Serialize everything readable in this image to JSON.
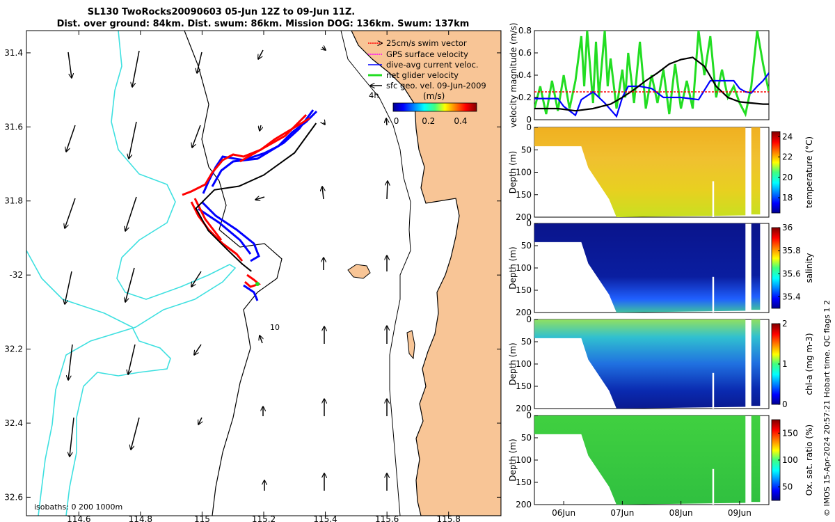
{
  "title": {
    "line1": "SL130 TwoRocks20090603 05-Jun 12Z to 09-Jun 11Z.",
    "line2": "Dist. over ground: 84km. Dist. swum: 86km. Mission DOG: 136km. Swum: 137km"
  },
  "colors": {
    "land": "#f8c596",
    "isobath_200": "#3ee0e0",
    "coastline": "#000000",
    "swim": "#ff0000",
    "gps": "#ff00ff",
    "current": "#0000ff",
    "net": "#22dd22"
  },
  "chart_data": [
    {
      "type": "scatter",
      "name": "glider-track-map",
      "xlabel": "",
      "ylabel": "",
      "xlim": [
        114.43,
        115.97
      ],
      "ylim": [
        -32.65,
        -31.34
      ],
      "x_ticks": [
        114.6,
        114.8,
        115,
        115.2,
        115.4,
        115.6,
        115.8
      ],
      "x_tick_labels": [
        "114.6",
        "114.8",
        "115",
        "115.2",
        "115.4",
        "115.6",
        "115.8"
      ],
      "y_ticks": [
        -31.4,
        -31.6,
        -31.8,
        -32,
        -32.2,
        -32.4,
        -32.6
      ],
      "y_tick_labels": [
        "31.4",
        "31.6",
        "31.8",
        "-32",
        "32.2",
        "32.4",
        "32.6"
      ],
      "legend": {
        "placement": "top-right",
        "entries": [
          "25cm/s swim vector",
          "GPS surface velocity",
          "dive-avg current veloc.",
          "net glider velocity",
          "sfc geo. vel. 09-Jun-2009"
        ],
        "time_label": "4h"
      },
      "colorbar": {
        "label": "(m/s)",
        "ticks": [
          0,
          0.2,
          0.4
        ],
        "range": [
          -0.02,
          0.5
        ]
      },
      "annotations": {
        "isobaths": "isobaths: 0   200  1000m",
        "label_10": "10"
      },
      "track": [
        [
          115.37,
          -31.59
        ],
        [
          115.3,
          -31.67
        ],
        [
          115.2,
          -31.73
        ],
        [
          115.12,
          -31.76
        ],
        [
          115.04,
          -31.77
        ],
        [
          114.98,
          -31.82
        ],
        [
          115.02,
          -31.88
        ],
        [
          115.08,
          -31.93
        ],
        [
          115.13,
          -31.97
        ],
        [
          115.16,
          -31.99
        ]
      ]
    },
    {
      "type": "line",
      "name": "velocity-magnitude",
      "xlabel": "",
      "ylabel": "velocity magnitude (m/s)",
      "ylim": [
        0,
        0.8
      ],
      "y_ticks": [
        0,
        0.2,
        0.4,
        0.6,
        0.8
      ],
      "x_range_days": [
        5.5,
        9.5
      ],
      "series": [
        {
          "name": "net glider velocity",
          "color": "#22dd22",
          "x": [
            5.5,
            5.6,
            5.7,
            5.8,
            5.9,
            6.0,
            6.1,
            6.2,
            6.3,
            6.35,
            6.4,
            6.5,
            6.55,
            6.6,
            6.7,
            6.75,
            6.8,
            6.9,
            7.0,
            7.05,
            7.1,
            7.2,
            7.3,
            7.4,
            7.5,
            7.6,
            7.7,
            7.8,
            7.9,
            8.0,
            8.1,
            8.2,
            8.3,
            8.4,
            8.5,
            8.6,
            8.7,
            8.8,
            8.9,
            9.0,
            9.05,
            9.1,
            9.2,
            9.3,
            9.4,
            9.5
          ],
          "values": [
            0.1,
            0.3,
            0.05,
            0.35,
            0.08,
            0.4,
            0.1,
            0.35,
            0.75,
            0.3,
            0.8,
            0.15,
            0.7,
            0.2,
            0.8,
            0.3,
            0.55,
            0.1,
            0.45,
            0.2,
            0.6,
            0.15,
            0.7,
            0.1,
            0.4,
            0.15,
            0.45,
            0.05,
            0.5,
            0.1,
            0.35,
            0.1,
            0.8,
            0.4,
            0.75,
            0.2,
            0.45,
            0.2,
            0.3,
            0.15,
            0.1,
            0.05,
            0.3,
            0.8,
            0.5,
            0.25
          ]
        },
        {
          "name": "dive-avg current veloc.",
          "color": "#0000ff",
          "x": [
            5.5,
            5.7,
            5.9,
            6.0,
            6.2,
            6.3,
            6.5,
            6.7,
            6.9,
            7.0,
            7.1,
            7.3,
            7.5,
            7.7,
            8.0,
            8.3,
            8.5,
            8.7,
            8.9,
            9.0,
            9.1,
            9.2,
            9.3,
            9.4,
            9.5
          ],
          "values": [
            0.19,
            0.19,
            0.19,
            0.12,
            0.04,
            0.18,
            0.25,
            0.15,
            0.03,
            0.2,
            0.3,
            0.3,
            0.28,
            0.2,
            0.2,
            0.18,
            0.35,
            0.35,
            0.35,
            0.28,
            0.25,
            0.24,
            0.3,
            0.35,
            0.42
          ]
        },
        {
          "name": "net current",
          "color": "#000000",
          "x": [
            5.5,
            5.9,
            6.2,
            6.5,
            6.8,
            7.0,
            7.2,
            7.4,
            7.6,
            7.8,
            8.0,
            8.2,
            8.4,
            8.6,
            8.8,
            9.0,
            9.2,
            9.4,
            9.5
          ],
          "values": [
            0.1,
            0.1,
            0.08,
            0.1,
            0.14,
            0.2,
            0.27,
            0.35,
            0.42,
            0.5,
            0.54,
            0.56,
            0.48,
            0.3,
            0.2,
            0.16,
            0.15,
            0.14,
            0.14
          ]
        },
        {
          "name": "swim 25cm/s",
          "color": "#ff0000",
          "x": [
            5.5,
            9.5
          ],
          "values": [
            0.25,
            0.25
          ]
        }
      ]
    },
    {
      "type": "heatmap",
      "name": "temperature-section",
      "ylabel": "Depth (m)",
      "colorbar_label": "temperature (°C)",
      "colorbar_ticks": [
        18,
        20,
        22,
        24
      ],
      "clim": [
        16.5,
        24.5
      ],
      "y_ticks": [
        0,
        50,
        100,
        150,
        200
      ]
    },
    {
      "type": "heatmap",
      "name": "salinity-section",
      "ylabel": "Depth (m)",
      "colorbar_label": "salinity",
      "colorbar_ticks": [
        35.4,
        35.6,
        35.8,
        36
      ],
      "clim": [
        35.3,
        36.0
      ],
      "y_ticks": [
        0,
        50,
        100,
        150,
        200
      ]
    },
    {
      "type": "heatmap",
      "name": "chlorophyll-section",
      "ylabel": "Depth (m)",
      "colorbar_label": "chl-a (mg m-3)",
      "colorbar_ticks": [
        0,
        1,
        2
      ],
      "clim": [
        0,
        2
      ],
      "y_ticks": [
        0,
        50,
        100,
        150,
        200
      ]
    },
    {
      "type": "heatmap",
      "name": "oxygen-section",
      "ylabel": "Depth (m)",
      "colorbar_label": "Ox. sat. ratio (%)",
      "colorbar_ticks": [
        50,
        100,
        150
      ],
      "clim": [
        25,
        175
      ],
      "y_ticks": [
        0,
        50,
        100,
        150,
        200
      ],
      "x_ticks": [
        6,
        7,
        8,
        9
      ],
      "x_tick_labels": [
        "06Jun",
        "07Jun",
        "08Jun",
        "09Jun"
      ]
    }
  ],
  "credit": "© IMOS 15-Apr-2024 20:57:21 Hobart time. QC flags 1  2"
}
